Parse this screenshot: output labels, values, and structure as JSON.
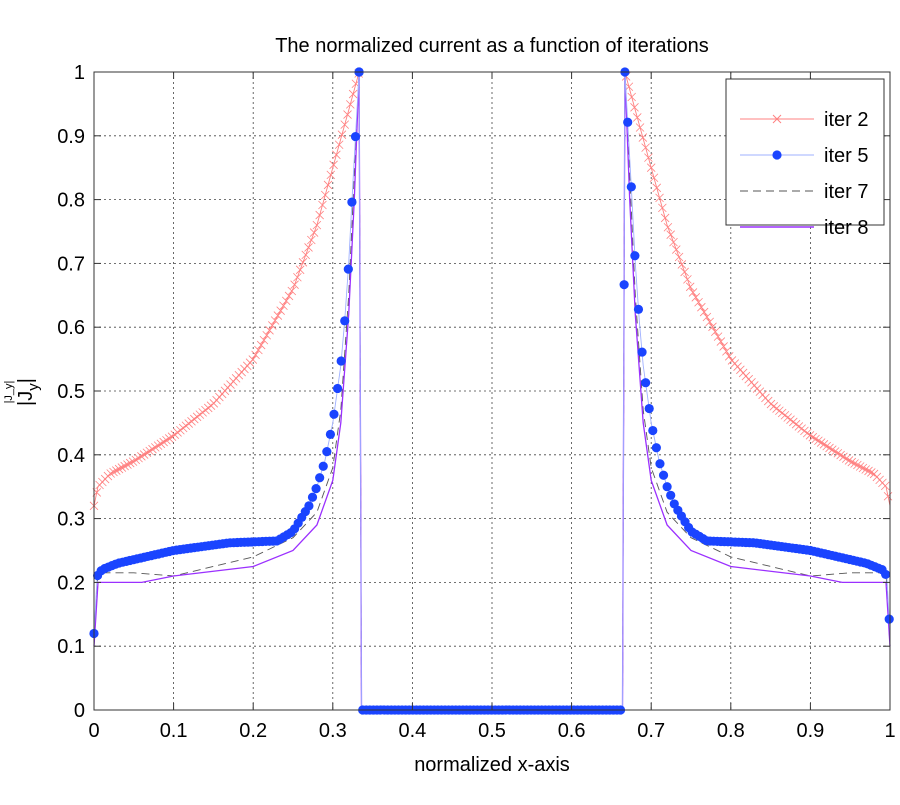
{
  "chart_data": {
    "type": "line",
    "title": "The normalized current as a function of iterations",
    "xlabel": "normalized x-axis",
    "ylabel": "|J_y|",
    "ylabel_main": "|J",
    "ylabel_sub": "y",
    "ylabel_end": "|",
    "xlim": [
      0,
      1
    ],
    "ylim": [
      0,
      1
    ],
    "xticks": [
      "0",
      "0.1",
      "0.2",
      "0.3",
      "0.4",
      "0.5",
      "0.6",
      "0.7",
      "0.8",
      "0.9",
      "1"
    ],
    "yticks": [
      "0",
      "0.1",
      "0.2",
      "0.3",
      "0.4",
      "0.5",
      "0.6",
      "0.7",
      "0.8",
      "0.9",
      "1"
    ],
    "grid": true,
    "legend_position": "top-right",
    "symmetric_about_x": 0.5,
    "series": [
      {
        "name": "iter 2",
        "color": "#ff8080",
        "style": "solid",
        "marker": "x",
        "marker_step": 0.0035,
        "left_half_points": [
          [
            0,
            0.32
          ],
          [
            0.005,
            0.35
          ],
          [
            0.02,
            0.37
          ],
          [
            0.05,
            0.39
          ],
          [
            0.1,
            0.43
          ],
          [
            0.15,
            0.48
          ],
          [
            0.2,
            0.55
          ],
          [
            0.25,
            0.66
          ],
          [
            0.28,
            0.76
          ],
          [
            0.3,
            0.85
          ],
          [
            0.32,
            0.94
          ],
          [
            0.333,
            1.0
          ],
          [
            0.336,
            0
          ],
          [
            0.5,
            0
          ]
        ]
      },
      {
        "name": "iter 5",
        "color": "#1a44ff",
        "style": "solid",
        "marker": "o",
        "marker_step": 0.0045,
        "left_half_points": [
          [
            0,
            0.12
          ],
          [
            0.004,
            0.21
          ],
          [
            0.01,
            0.22
          ],
          [
            0.03,
            0.23
          ],
          [
            0.1,
            0.25
          ],
          [
            0.17,
            0.262
          ],
          [
            0.23,
            0.265
          ],
          [
            0.25,
            0.28
          ],
          [
            0.27,
            0.32
          ],
          [
            0.28,
            0.35
          ],
          [
            0.29,
            0.39
          ],
          [
            0.3,
            0.45
          ],
          [
            0.31,
            0.54
          ],
          [
            0.315,
            0.61
          ],
          [
            0.32,
            0.7
          ],
          [
            0.325,
            0.82
          ],
          [
            0.333,
            1.0
          ],
          [
            0.336,
            0
          ],
          [
            0.5,
            0
          ]
        ]
      },
      {
        "name": "iter 7",
        "color": "#555555",
        "style": "dashed",
        "marker": "none",
        "left_half_points": [
          [
            0,
            0.1
          ],
          [
            0.005,
            0.215
          ],
          [
            0.05,
            0.215
          ],
          [
            0.1,
            0.21
          ],
          [
            0.2,
            0.24
          ],
          [
            0.25,
            0.27
          ],
          [
            0.28,
            0.31
          ],
          [
            0.3,
            0.38
          ],
          [
            0.31,
            0.47
          ],
          [
            0.32,
            0.65
          ],
          [
            0.333,
            1.0
          ],
          [
            0.336,
            0
          ],
          [
            0.5,
            0
          ]
        ]
      },
      {
        "name": "iter 8",
        "color": "#9b30ff",
        "style": "solid",
        "marker": "none",
        "left_half_points": [
          [
            0,
            0.1
          ],
          [
            0.005,
            0.2
          ],
          [
            0.06,
            0.2
          ],
          [
            0.1,
            0.21
          ],
          [
            0.2,
            0.225
          ],
          [
            0.25,
            0.25
          ],
          [
            0.28,
            0.29
          ],
          [
            0.3,
            0.36
          ],
          [
            0.31,
            0.45
          ],
          [
            0.32,
            0.62
          ],
          [
            0.327,
            0.8
          ],
          [
            0.333,
            1.0
          ],
          [
            0.336,
            0
          ],
          [
            0.5,
            0
          ]
        ]
      }
    ]
  }
}
